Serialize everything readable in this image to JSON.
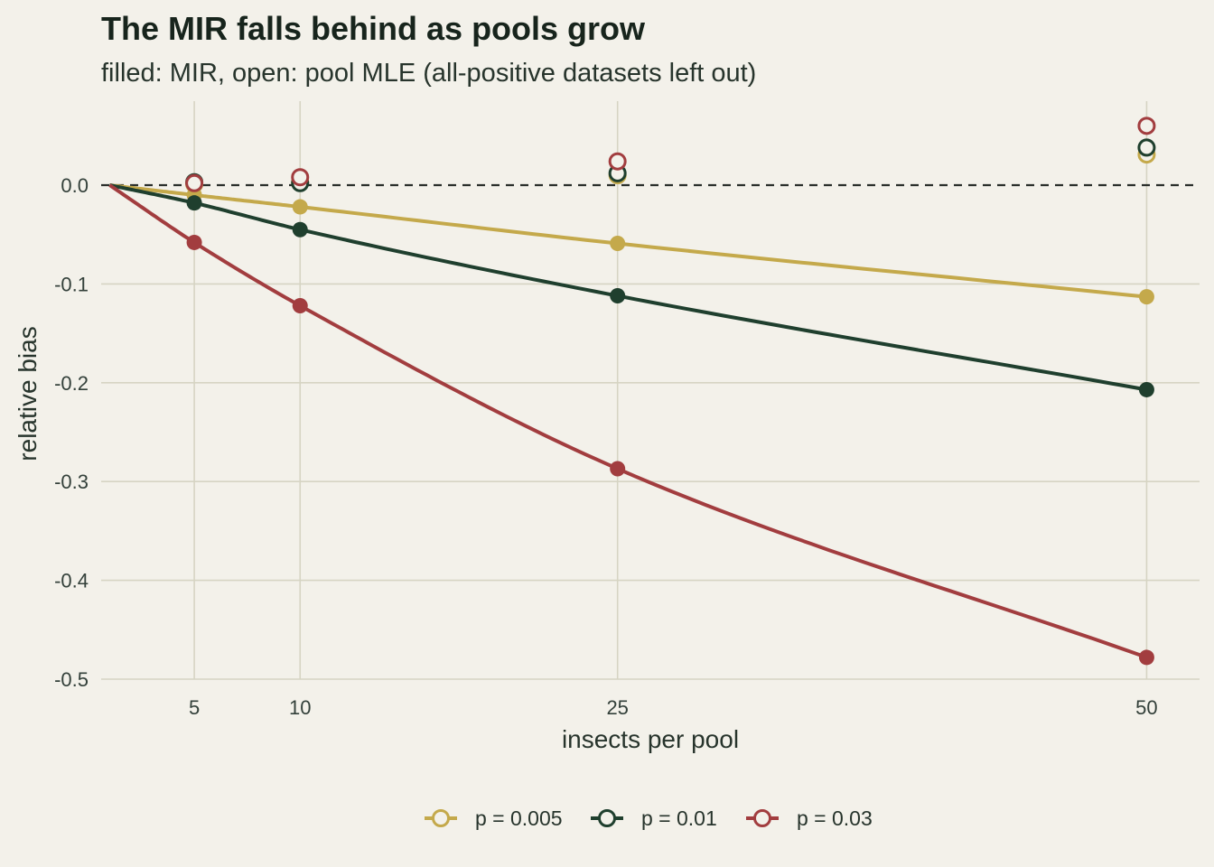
{
  "chart_data": {
    "type": "line",
    "title": "The MIR falls behind as pools grow",
    "subtitle": "filled: MIR, open: pool MLE (all-positive datasets left out)",
    "xlabel": "insects per pool",
    "ylabel": "relative bias",
    "x_ticks": [
      5,
      10,
      25,
      50
    ],
    "y_ticks": [
      0.0,
      -0.1,
      -0.2,
      -0.3,
      -0.4,
      -0.5
    ],
    "y_tick_labels": [
      "0.0",
      "-0.1",
      "-0.2",
      "-0.3",
      "-0.4",
      "-0.5"
    ],
    "xlim": [
      0.6,
      52.5
    ],
    "ylim": [
      -0.5,
      0.085
    ],
    "reference_line": 0.0,
    "grid": true,
    "legend_position": "bottom",
    "series": [
      {
        "name": "p = 0.005",
        "color": "#c4a94b",
        "x": [
          5,
          10,
          25,
          50
        ],
        "mir": [
          -0.01,
          -0.022,
          -0.059,
          -0.113
        ],
        "mle": [
          0.001,
          0.003,
          0.01,
          0.031
        ]
      },
      {
        "name": "p = 0.01",
        "color": "#1f3f2e",
        "x": [
          5,
          10,
          25,
          50
        ],
        "mir": [
          -0.018,
          -0.045,
          -0.112,
          -0.207
        ],
        "mle": [
          0.003,
          0.002,
          0.012,
          0.038
        ]
      },
      {
        "name": "p = 0.03",
        "color": "#a23d3f",
        "x": [
          5,
          10,
          25,
          50
        ],
        "mir": [
          -0.058,
          -0.122,
          -0.287,
          -0.478
        ],
        "mle": [
          0.002,
          0.008,
          0.024,
          0.06
        ]
      }
    ]
  }
}
